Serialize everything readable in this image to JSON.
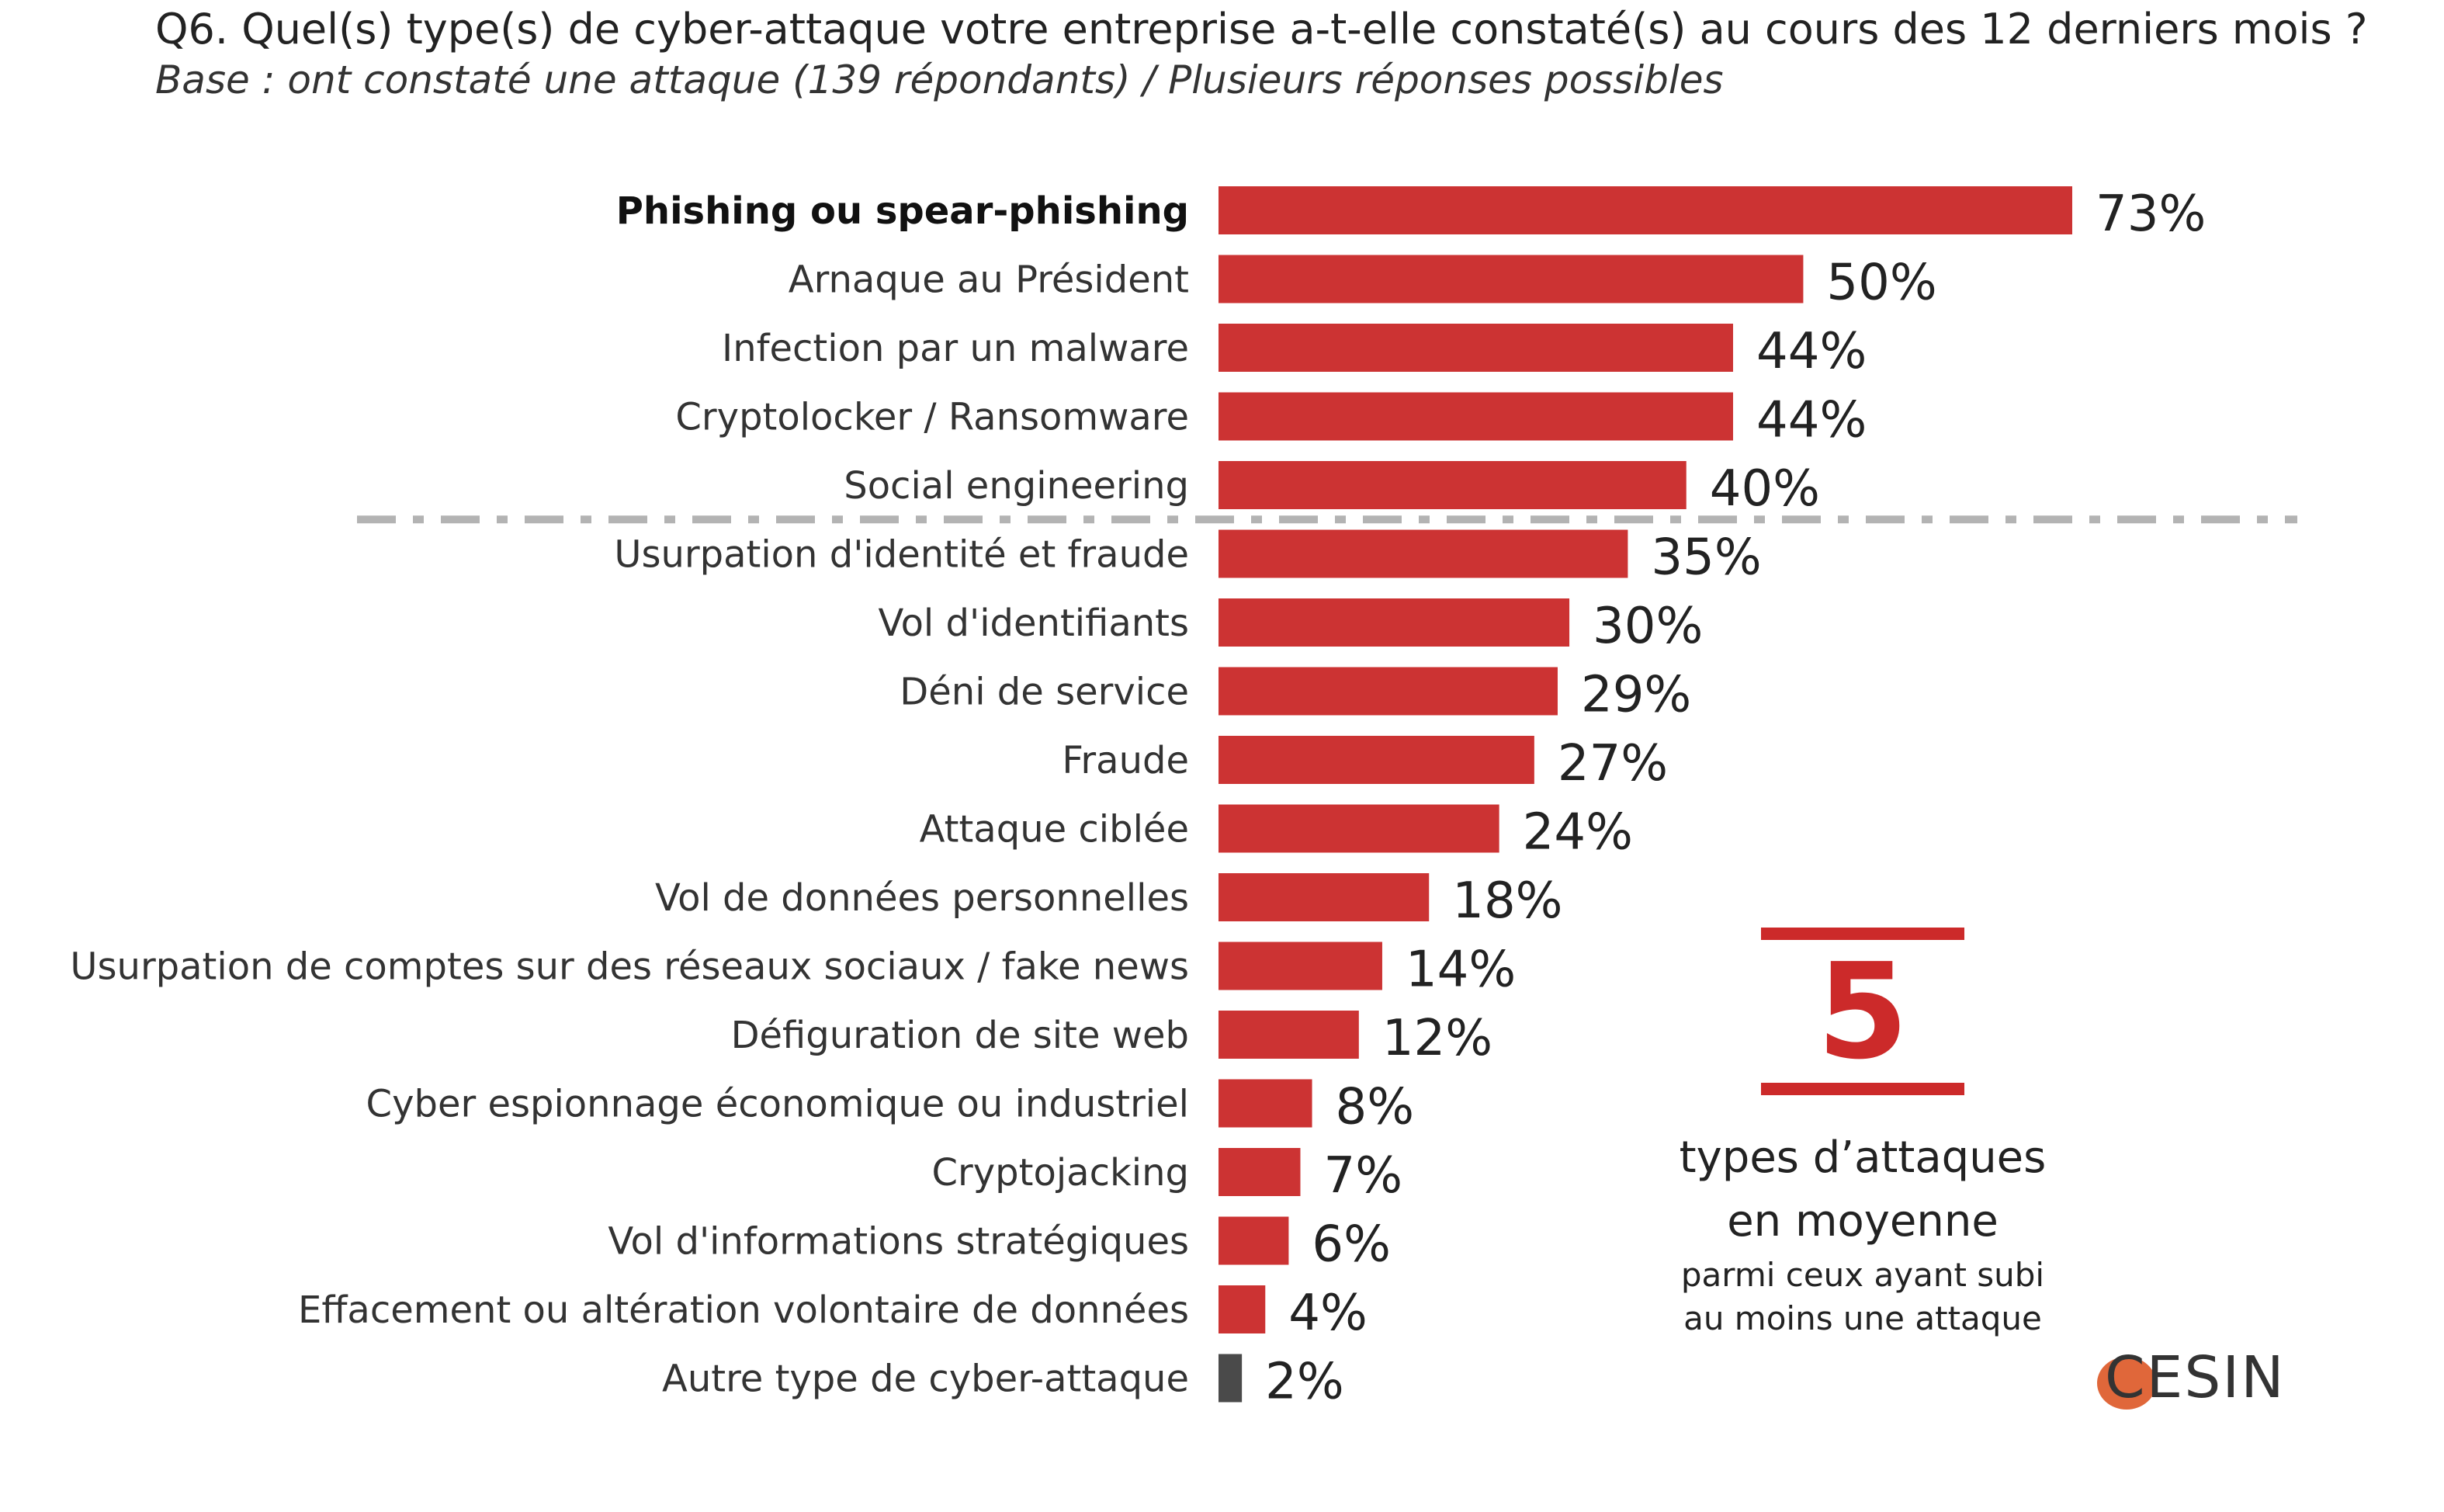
{
  "title": "Q6. Quel(s) type(s) de cyber-attaque votre entreprise a-t-elle constaté(s) au cours des 12 derniers mois ?",
  "subtitle": "Base : ont constaté une attaque (139 répondants) / Plusieurs réponses possibles",
  "colors": {
    "bar": "#cc3333",
    "other_bar": "#4a4a4a",
    "accent": "#cc2a2a",
    "divider": "#b3b3b3"
  },
  "chart_data": {
    "type": "bar",
    "orientation": "horizontal",
    "categories": [
      "Phishing ou spear-phishing",
      "Arnaque au Président",
      "Infection par un malware",
      "Cryptolocker / Ransomware",
      "Social engineering",
      "Usurpation d'identité et fraude",
      "Vol d'identifiants",
      "Déni de service",
      "Fraude",
      "Attaque ciblée",
      "Vol de données personnelles",
      "Usurpation de comptes sur des réseaux sociaux / fake news",
      "Défiguration de site web",
      "Cyber espionnage économique ou industriel",
      "Cryptojacking",
      "Vol d'informations stratégiques",
      "Effacement ou altération volontaire de données",
      "Autre type de cyber-attaque"
    ],
    "values": [
      73,
      50,
      44,
      44,
      40,
      35,
      30,
      29,
      27,
      24,
      18,
      14,
      12,
      8,
      7,
      6,
      4,
      2
    ],
    "value_labels": [
      "73%",
      "50%",
      "44%",
      "44%",
      "40%",
      "35%",
      "30%",
      "29%",
      "27%",
      "24%",
      "18%",
      "14%",
      "12%",
      "8%",
      "7%",
      "6%",
      "4%",
      "2%"
    ],
    "bold_categories": [
      "Phishing ou spear-phishing"
    ],
    "other_category": "Autre type de cyber-attaque",
    "divider_after_category": "Social engineering",
    "xlim": [
      0,
      73
    ],
    "unit": "%"
  },
  "callout": {
    "number": "5",
    "line1": "types d’attaques",
    "line2": "en moyenne",
    "line3": "parmi ceux ayant subi",
    "line4": "au moins une attaque"
  },
  "logo": {
    "text": "CESIN"
  }
}
